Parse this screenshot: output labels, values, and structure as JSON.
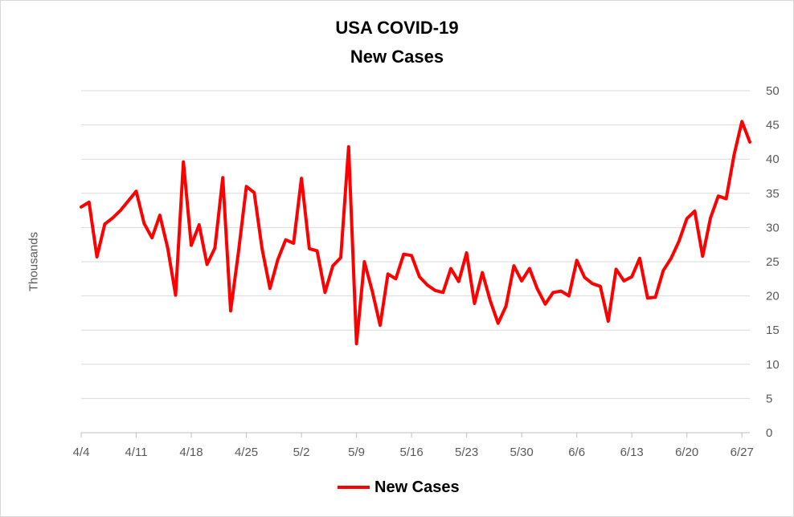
{
  "chart_data": {
    "type": "line",
    "title": "USA COVID-19",
    "subtitle": "New Cases",
    "ylabel": "Thousands",
    "xlabel": "",
    "ylim": [
      0,
      50
    ],
    "yticks": [
      0,
      5,
      10,
      15,
      20,
      25,
      30,
      35,
      40,
      45,
      50
    ],
    "y_axis_side": "right",
    "grid": true,
    "legend_position": "bottom",
    "x_tick_labels": [
      "4/4",
      "4/11",
      "4/18",
      "4/25",
      "5/2",
      "5/9",
      "5/16",
      "5/23",
      "5/30",
      "6/6",
      "6/13",
      "6/20",
      "6/27"
    ],
    "x": [
      "4/4",
      "4/5",
      "4/6",
      "4/7",
      "4/8",
      "4/9",
      "4/10",
      "4/11",
      "4/12",
      "4/13",
      "4/14",
      "4/15",
      "4/16",
      "4/17",
      "4/18",
      "4/19",
      "4/20",
      "4/21",
      "4/22",
      "4/23",
      "4/24",
      "4/25",
      "4/26",
      "4/27",
      "4/28",
      "4/29",
      "4/30",
      "5/1",
      "5/2",
      "5/3",
      "5/4",
      "5/5",
      "5/6",
      "5/7",
      "5/8",
      "5/9",
      "5/10",
      "5/11",
      "5/12",
      "5/13",
      "5/14",
      "5/15",
      "5/16",
      "5/17",
      "5/18",
      "5/19",
      "5/20",
      "5/21",
      "5/22",
      "5/23",
      "5/24",
      "5/25",
      "5/26",
      "5/27",
      "5/28",
      "5/29",
      "5/30",
      "5/31",
      "6/1",
      "6/2",
      "6/3",
      "6/4",
      "6/5",
      "6/6",
      "6/7",
      "6/8",
      "6/9",
      "6/10",
      "6/11",
      "6/12",
      "6/13",
      "6/14",
      "6/15",
      "6/16",
      "6/17",
      "6/18",
      "6/19",
      "6/20",
      "6/21",
      "6/22",
      "6/23",
      "6/24",
      "6/25",
      "6/26",
      "6/27",
      "6/28"
    ],
    "series": [
      {
        "name": "New Cases",
        "color": "#ff0000",
        "values": [
          33.0,
          33.7,
          25.7,
          30.5,
          31.4,
          32.5,
          33.9,
          35.3,
          30.6,
          28.5,
          31.8,
          27.0,
          20.1,
          39.6,
          27.4,
          30.4,
          24.6,
          27.0,
          37.3,
          17.8,
          26.5,
          36.0,
          35.1,
          26.9,
          21.1,
          25.3,
          28.2,
          27.7,
          37.2,
          26.9,
          26.6,
          20.5,
          24.4,
          25.6,
          41.8,
          13.0,
          25.0,
          20.7,
          15.7,
          23.2,
          22.5,
          26.1,
          25.9,
          22.8,
          21.6,
          20.8,
          20.5,
          24.0,
          22.1,
          26.3,
          18.9,
          23.4,
          19.3,
          16.0,
          18.5,
          24.4,
          22.2,
          24.0,
          21.0,
          18.8,
          20.5,
          20.7,
          20.0,
          25.2,
          22.7,
          21.8,
          21.4,
          16.3,
          23.9,
          22.2,
          22.8,
          25.5,
          19.7,
          19.8,
          23.7,
          25.5,
          28.0,
          31.3,
          32.4,
          25.8,
          31.4,
          34.6,
          34.2,
          40.6,
          45.5,
          42.5
        ]
      }
    ]
  }
}
